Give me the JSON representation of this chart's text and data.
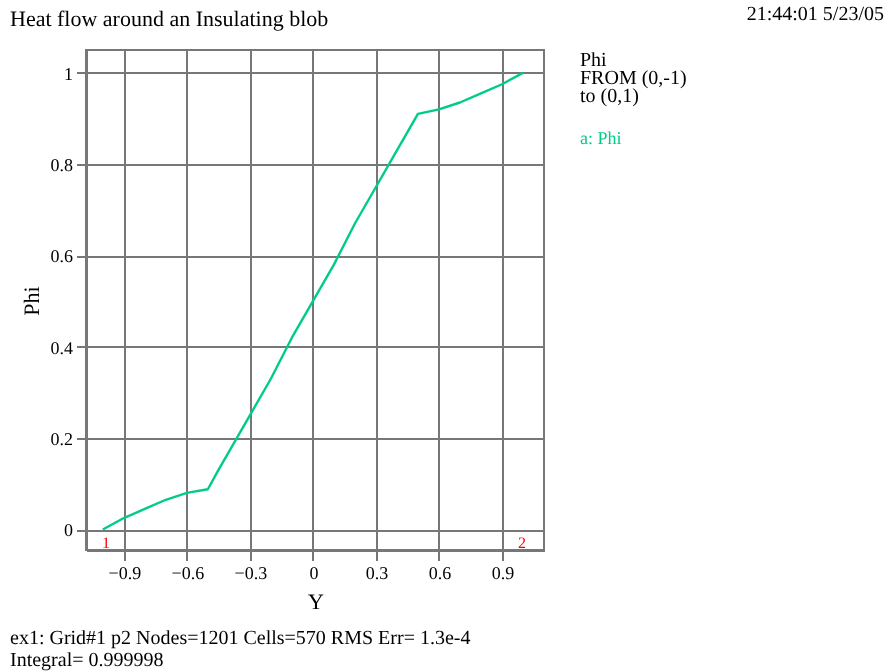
{
  "chart_data": {
    "type": "line",
    "title": "Heat flow around an Insulating blob",
    "xlabel": "Y",
    "ylabel": "Phi",
    "x": [
      -1.0,
      -0.9,
      -0.8,
      -0.7,
      -0.6,
      -0.5,
      -0.45,
      -0.4,
      -0.3,
      -0.2,
      -0.1,
      0.0,
      0.1,
      0.2,
      0.3,
      0.4,
      0.45,
      0.5,
      0.6,
      0.7,
      0.8,
      0.9,
      1.0
    ],
    "series": [
      {
        "name": "a: Phi",
        "color": "#00cc88",
        "values": [
          0.0,
          0.025,
          0.045,
          0.065,
          0.08,
          0.088,
          0.13,
          0.17,
          0.25,
          0.33,
          0.42,
          0.5,
          0.58,
          0.67,
          0.75,
          0.83,
          0.87,
          0.91,
          0.92,
          0.935,
          0.955,
          0.975,
          1.0
        ]
      }
    ],
    "xlim": [
      -1.08,
      1.1
    ],
    "ylim": [
      -0.045,
      1.05
    ],
    "xticks": [
      -0.9,
      -0.6,
      -0.3,
      0,
      0.3,
      0.6,
      0.9
    ],
    "yticks": [
      0,
      0.2,
      0.4,
      0.6,
      0.8,
      1
    ],
    "grid": true,
    "legend": "right",
    "marker": "none",
    "line_style": "solid",
    "annotations": [
      "21:44:01 5/23/05",
      "Phi",
      "FROM (0,-1)",
      "to (0,1)",
      "ex1:  Grid#1  p2  Nodes=1201 Cells=570 RMS Err= 1.3e-4",
      "Integral=  0.999998",
      "1",
      "2"
    ]
  }
}
